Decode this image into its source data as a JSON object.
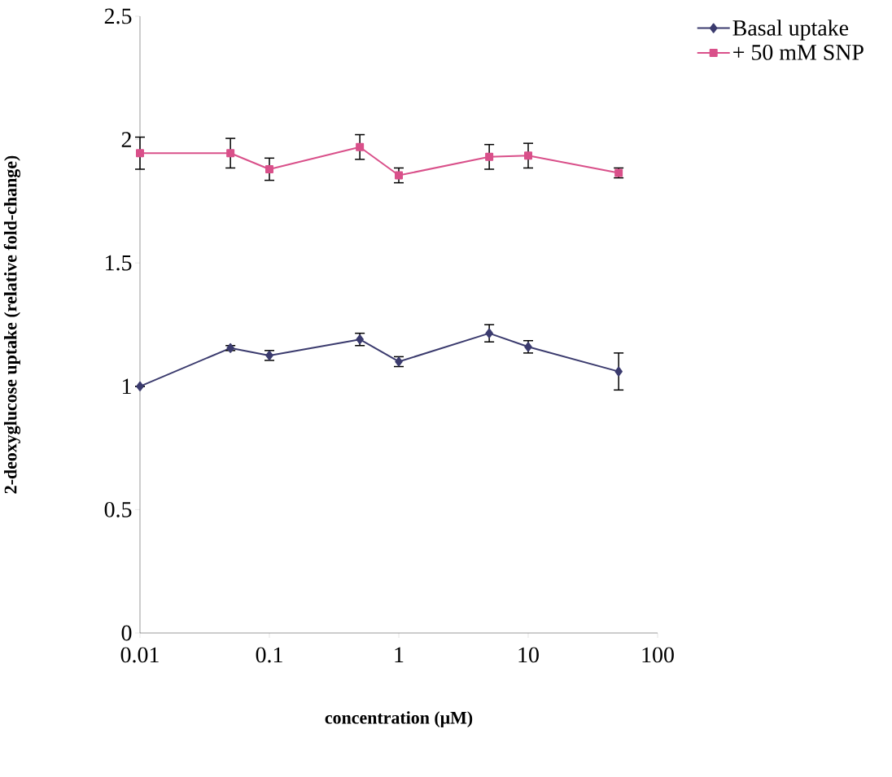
{
  "chart_data": {
    "type": "line",
    "xlabel": "concentration (μM)",
    "ylabel": "2-deoxyglucose uptake (relative fold-change)",
    "log": "x",
    "x": [
      0.01,
      0.05,
      0.1,
      0.5,
      1,
      5,
      10,
      50
    ],
    "xlim": [
      0.01,
      100
    ],
    "ylim": [
      0,
      2.5
    ],
    "xticks": [
      0.01,
      0.1,
      1,
      10,
      100
    ],
    "yticks": [
      0,
      0.5,
      1,
      1.5,
      2,
      2.5
    ],
    "grid": false,
    "legend": "top right",
    "line_style": "solid",
    "series": [
      {
        "name": "Basal uptake",
        "color": "#3b3b6e",
        "marker": "diamond",
        "values": [
          1.0,
          1.155,
          1.125,
          1.19,
          1.1,
          1.215,
          1.16,
          1.06
        ],
        "errors": [
          null,
          0.01,
          0.02,
          0.025,
          0.02,
          0.035,
          0.025,
          0.075
        ]
      },
      {
        "name": "+ 50 mM SNP",
        "color": "#d9508a",
        "marker": "square",
        "values": [
          1.945,
          1.945,
          1.88,
          1.97,
          1.855,
          1.93,
          1.935,
          1.865
        ],
        "errors": [
          0.065,
          0.06,
          0.045,
          0.05,
          0.03,
          0.05,
          0.05,
          0.02
        ]
      }
    ]
  }
}
